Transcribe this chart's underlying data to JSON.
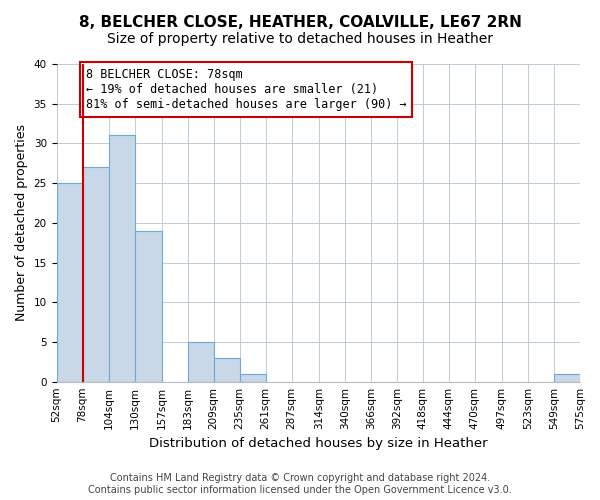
{
  "title": "8, BELCHER CLOSE, HEATHER, COALVILLE, LE67 2RN",
  "subtitle": "Size of property relative to detached houses in Heather",
  "xlabel": "Distribution of detached houses by size in Heather",
  "ylabel": "Number of detached properties",
  "bin_edges": [
    52,
    78,
    104,
    130,
    157,
    183,
    209,
    235,
    261,
    287,
    314,
    340,
    366,
    392,
    418,
    444,
    470,
    497,
    523,
    549,
    575
  ],
  "bin_labels": [
    "52sqm",
    "78sqm",
    "104sqm",
    "130sqm",
    "157sqm",
    "183sqm",
    "209sqm",
    "235sqm",
    "261sqm",
    "287sqm",
    "314sqm",
    "340sqm",
    "366sqm",
    "392sqm",
    "418sqm",
    "444sqm",
    "470sqm",
    "497sqm",
    "523sqm",
    "549sqm",
    "575sqm"
  ],
  "counts": [
    25,
    27,
    31,
    19,
    0,
    5,
    3,
    1,
    0,
    0,
    0,
    0,
    0,
    0,
    0,
    0,
    0,
    0,
    0,
    1
  ],
  "bar_color": "#c8d8e8",
  "bar_edge_color": "#6aaad4",
  "property_line_x": 78,
  "property_line_color": "#cc0000",
  "annotation_text": "8 BELCHER CLOSE: 78sqm\n← 19% of detached houses are smaller (21)\n81% of semi-detached houses are larger (90) →",
  "annotation_box_edge_color": "#cc0000",
  "ylim": [
    0,
    40
  ],
  "yticks": [
    0,
    5,
    10,
    15,
    20,
    25,
    30,
    35,
    40
  ],
  "footer_line1": "Contains HM Land Registry data © Crown copyright and database right 2024.",
  "footer_line2": "Contains public sector information licensed under the Open Government Licence v3.0.",
  "bg_color": "#ffffff",
  "grid_color": "#c0ccd8",
  "title_fontsize": 11,
  "subtitle_fontsize": 10,
  "axis_label_fontsize": 9,
  "tick_fontsize": 7.5,
  "annotation_fontsize": 8.5,
  "footer_fontsize": 7
}
